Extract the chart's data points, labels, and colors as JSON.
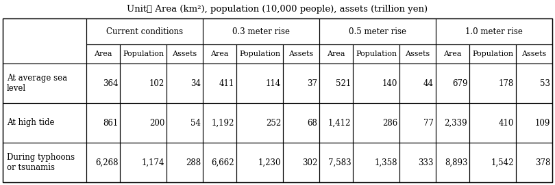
{
  "title": "Unit： Area (km²), population (10,000 people), assets (trillion yen)",
  "col_groups": [
    "Current conditions",
    "0.3 meter rise",
    "0.5 meter rise",
    "1.0 meter rise"
  ],
  "sub_labels": [
    "Area",
    "Population",
    "Assets",
    "Area",
    "Population",
    "Assets",
    "Area",
    "Population",
    "Assets",
    "Area",
    "Population",
    "Assets"
  ],
  "row_labels": [
    "At average sea\nlevel",
    "At high tide",
    "During typhoons\nor tsunamis"
  ],
  "data": [
    [
      "364",
      "102",
      "34",
      "411",
      "114",
      "37",
      "521",
      "140",
      "44",
      "679",
      "178",
      "53"
    ],
    [
      "861",
      "200",
      "54",
      "1,192",
      "252",
      "68",
      "1,412",
      "286",
      "77",
      "2,339",
      "410",
      "109"
    ],
    [
      "6,268",
      "1,174",
      "288",
      "6,662",
      "1,230",
      "302",
      "7,583",
      "1,358",
      "333",
      "8,893",
      "1,542",
      "378"
    ]
  ],
  "bg_color": "#ffffff",
  "line_color": "#000000",
  "text_color": "#000000",
  "title_fontsize": 9.5,
  "header_fontsize": 8.5,
  "sub_fontsize": 8.0,
  "cell_fontsize": 8.5,
  "row_label_fontsize": 8.5
}
